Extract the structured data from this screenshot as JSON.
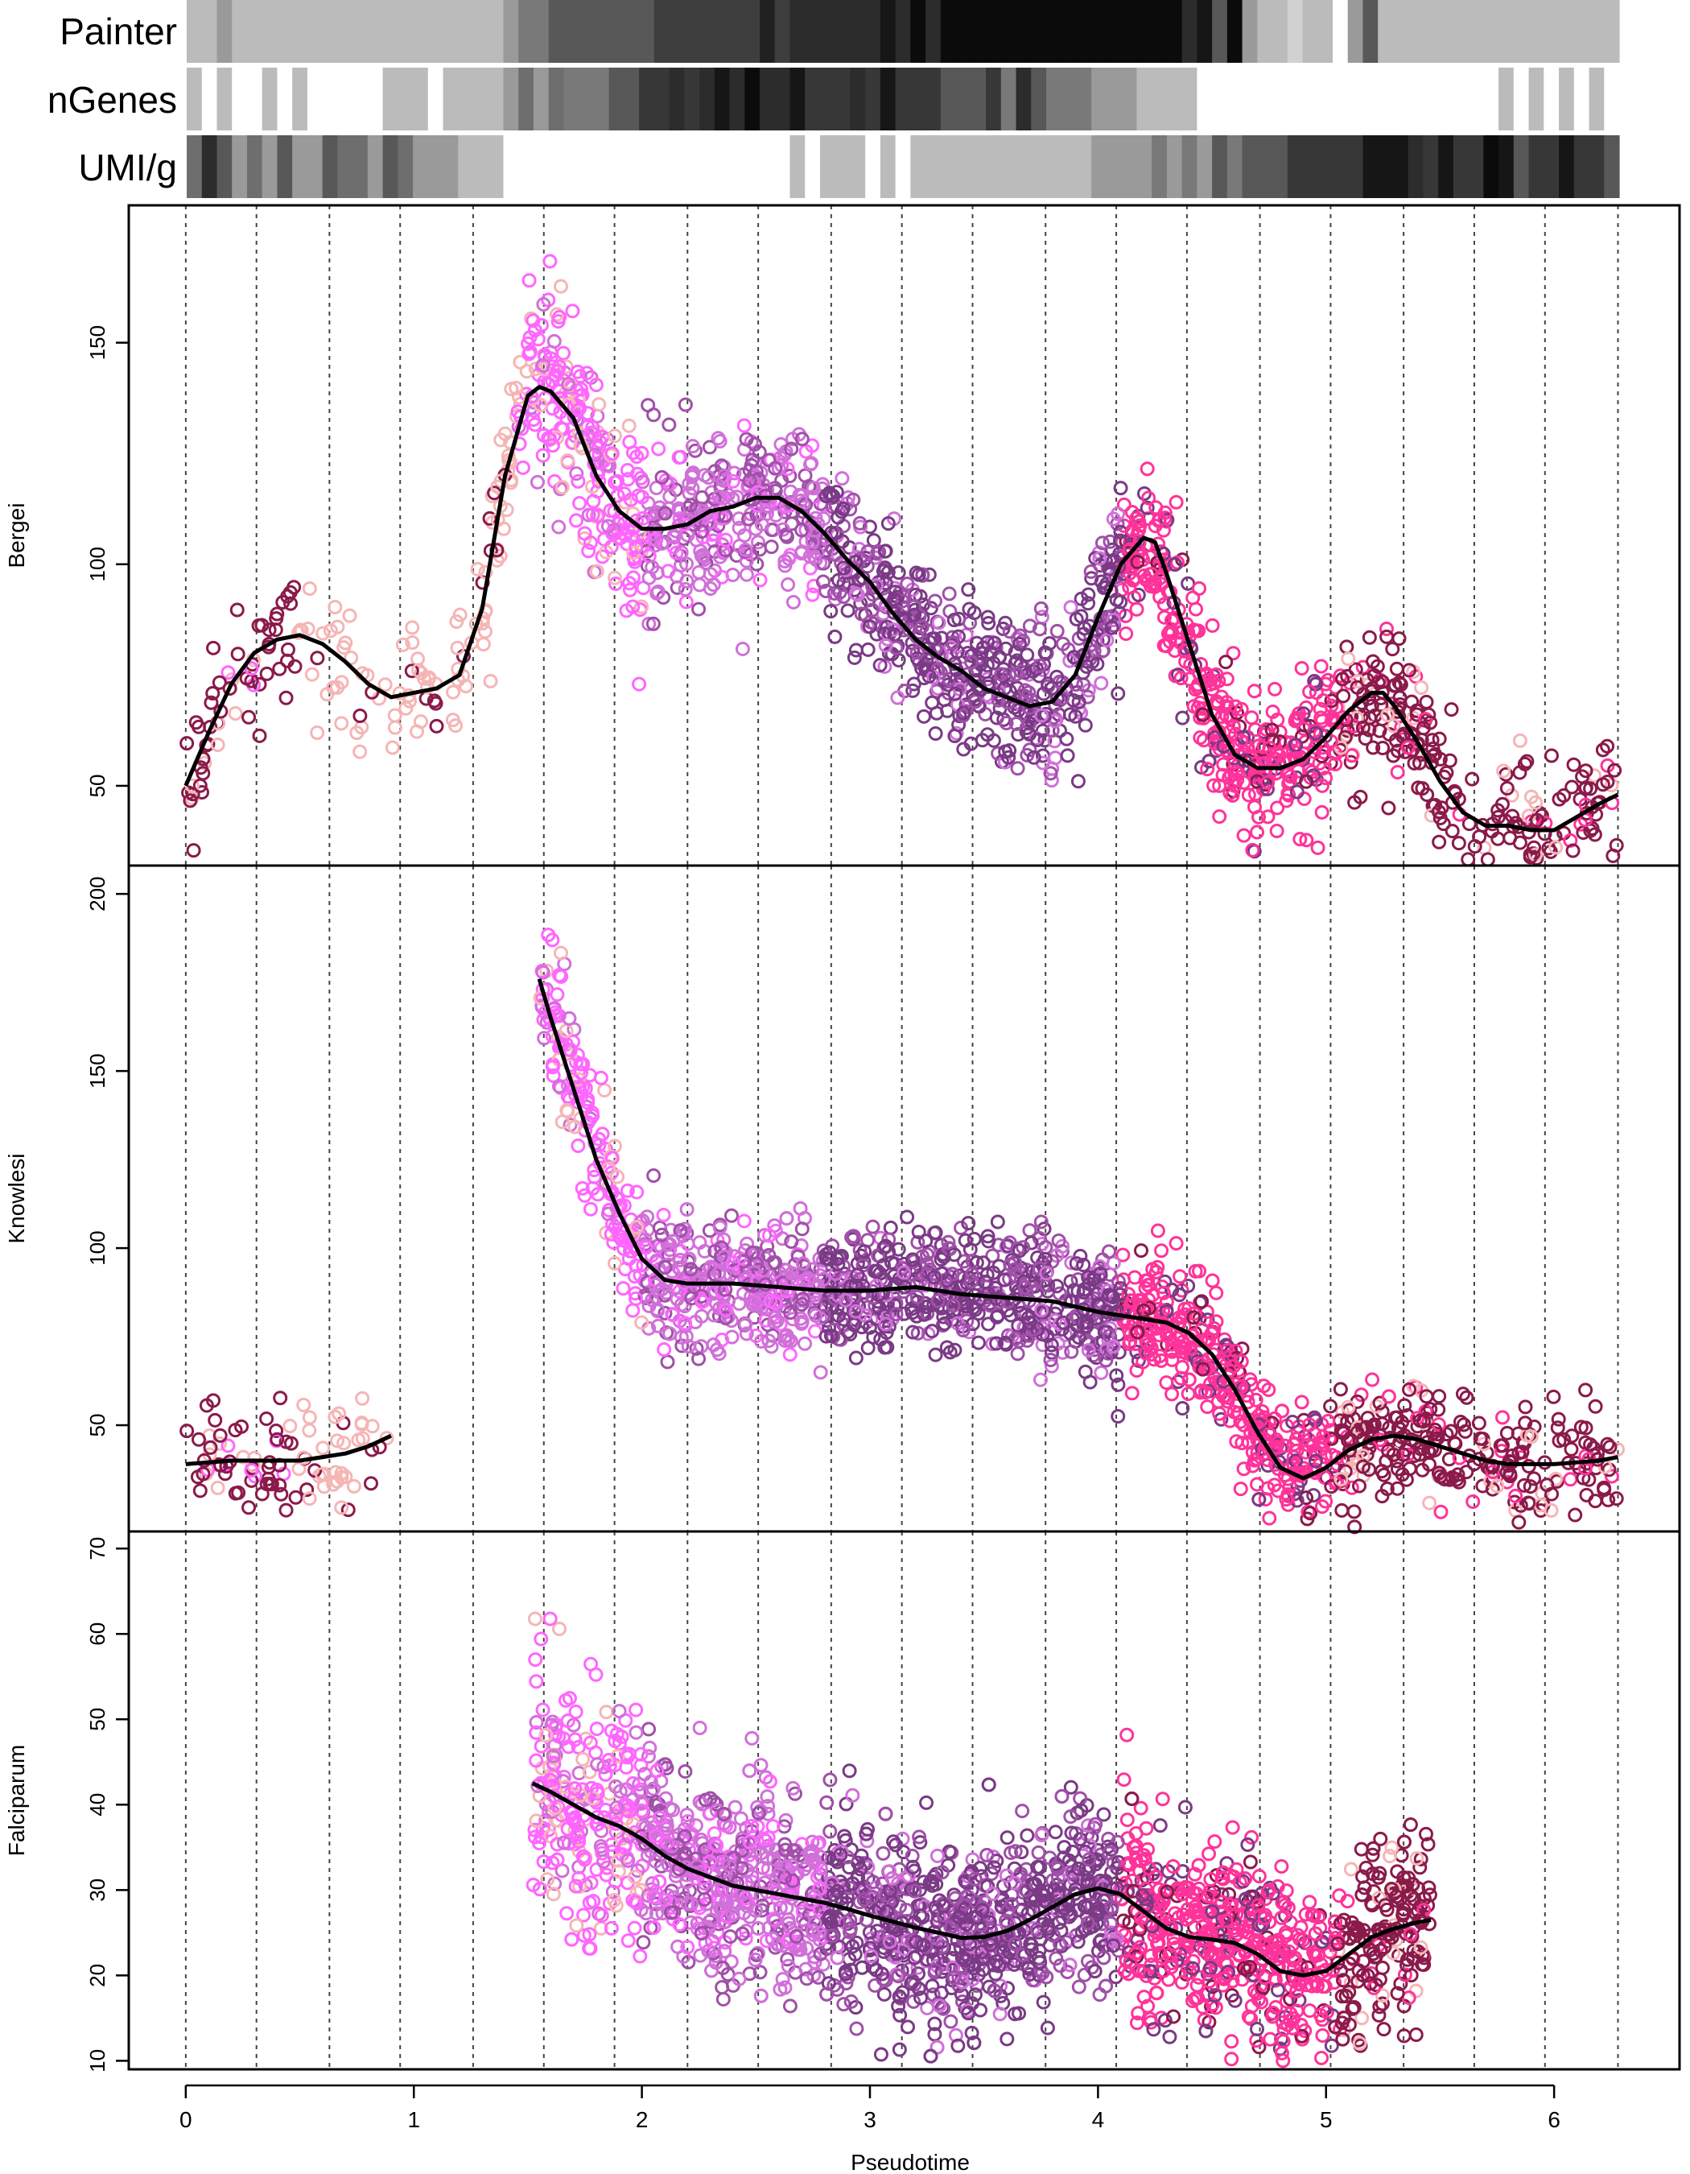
{
  "figure": {
    "xlabel": "Pseudotime",
    "x_ticks": [
      "0",
      "1",
      "2",
      "3",
      "4",
      "5",
      "6"
    ],
    "x_tick_values": [
      0,
      1,
      2,
      3,
      4,
      5,
      6
    ],
    "xlim": [
      -0.25,
      6.55
    ],
    "vertical_gridlines_at": [
      0,
      0.31,
      0.63,
      0.94,
      1.26,
      1.57,
      1.88,
      2.2,
      2.51,
      2.83,
      3.14,
      3.45,
      3.77,
      4.08,
      4.39,
      4.71,
      5.02,
      5.34,
      5.65,
      5.96,
      6.28
    ],
    "heatbar_labels": [
      "Painter",
      "nGenes",
      "UMI/g"
    ],
    "colors": {
      "light_pink": "#f5b5b5",
      "hot_pink_light": "#ff66ff",
      "orchid": "#d070d8",
      "mid_purple": "#a050a8",
      "dark_purple": "#7a3a85",
      "deep_pink": "#ff3399",
      "maroon": "#8a1a4a",
      "trend": "#000000"
    }
  },
  "heatbars": [
    {
      "label": "Painter",
      "cells": [
        0.15,
        0.15,
        0.3,
        0.15,
        0.15,
        0.15,
        0.15,
        0.15,
        0.15,
        0.15,
        0.15,
        0.15,
        0.15,
        0.15,
        0.15,
        0.15,
        0.15,
        0.15,
        0.15,
        0.15,
        0.15,
        0.3,
        0.45,
        0.45,
        0.6,
        0.6,
        0.6,
        0.6,
        0.6,
        0.6,
        0.6,
        0.72,
        0.72,
        0.72,
        0.72,
        0.72,
        0.72,
        0.72,
        0.85,
        0.72,
        0.8,
        0.8,
        0.8,
        0.8,
        0.8,
        0.8,
        0.9,
        0.8,
        0.95,
        0.8,
        0.95,
        0.95,
        0.95,
        0.95,
        0.95,
        0.95,
        0.95,
        0.95,
        0.95,
        0.95,
        0.95,
        0.95,
        0.95,
        0.95,
        0.95,
        0.95,
        0.8,
        0.9,
        0.6,
        0.95,
        0.3,
        0.15,
        0.15,
        0.05,
        0.15,
        0.15,
        0.0,
        0.3,
        0.6,
        0.15,
        0.15,
        0.15,
        0.15,
        0.15,
        0.15,
        0.15,
        0.15,
        0.15,
        0.15,
        0.15,
        0.15,
        0.15,
        0.15,
        0.15,
        0.15
      ]
    },
    {
      "label": "nGenes",
      "cells": [
        0.15,
        0.0,
        0.15,
        0.0,
        0.0,
        0.15,
        0.0,
        0.15,
        0.0,
        0.0,
        0.0,
        0.0,
        0.0,
        0.15,
        0.15,
        0.15,
        0.0,
        0.15,
        0.15,
        0.15,
        0.15,
        0.3,
        0.5,
        0.3,
        0.5,
        0.45,
        0.45,
        0.45,
        0.6,
        0.6,
        0.75,
        0.75,
        0.8,
        0.75,
        0.8,
        0.9,
        0.8,
        0.95,
        0.8,
        0.8,
        0.9,
        0.75,
        0.75,
        0.75,
        0.8,
        0.75,
        0.9,
        0.75,
        0.75,
        0.75,
        0.6,
        0.6,
        0.6,
        0.75,
        0.45,
        0.8,
        0.6,
        0.45,
        0.45,
        0.45,
        0.3,
        0.3,
        0.3,
        0.15,
        0.15,
        0.15,
        0.15,
        0.0,
        0.0,
        0.0,
        0.0,
        0.0,
        0.0,
        0.0,
        0.0,
        0.0,
        0.0,
        0.0,
        0.0,
        0.0,
        0.0,
        0.0,
        0.0,
        0.0,
        0.0,
        0.0,
        0.0,
        0.15,
        0.0,
        0.15,
        0.0,
        0.15,
        0.0,
        0.15,
        0.0
      ]
    },
    {
      "label": "UMI/g",
      "cells": [
        0.5,
        0.8,
        0.6,
        0.3,
        0.5,
        0.3,
        0.6,
        0.3,
        0.3,
        0.6,
        0.5,
        0.5,
        0.3,
        0.6,
        0.5,
        0.3,
        0.3,
        0.3,
        0.15,
        0.15,
        0.15,
        0.0,
        0.0,
        0.0,
        0.0,
        0.0,
        0.0,
        0.0,
        0.0,
        0.0,
        0.0,
        0.0,
        0.0,
        0.0,
        0.0,
        0.0,
        0.0,
        0.0,
        0.0,
        0.0,
        0.15,
        0.0,
        0.15,
        0.15,
        0.15,
        0.0,
        0.15,
        0.0,
        0.15,
        0.15,
        0.15,
        0.15,
        0.15,
        0.15,
        0.15,
        0.15,
        0.15,
        0.15,
        0.15,
        0.15,
        0.3,
        0.3,
        0.3,
        0.3,
        0.45,
        0.3,
        0.45,
        0.3,
        0.6,
        0.45,
        0.6,
        0.6,
        0.6,
        0.75,
        0.75,
        0.75,
        0.75,
        0.75,
        0.9,
        0.9,
        0.9,
        0.8,
        0.75,
        0.9,
        0.75,
        0.75,
        0.95,
        0.9,
        0.6,
        0.75,
        0.75,
        0.9,
        0.75,
        0.75,
        0.6
      ]
    }
  ],
  "chart_data": [
    {
      "type": "scatter",
      "title": "",
      "xlabel": "Pseudotime",
      "ylabel": "Bergei",
      "xlim": [
        -0.25,
        6.55
      ],
      "ylim": [
        32,
        181
      ],
      "y_ticks": [
        50,
        100,
        150
      ],
      "trend_x": [
        0.0,
        0.1,
        0.2,
        0.3,
        0.4,
        0.5,
        0.6,
        0.7,
        0.8,
        0.9,
        1.0,
        1.1,
        1.2,
        1.3,
        1.4,
        1.5,
        1.55,
        1.6,
        1.7,
        1.8,
        1.9,
        2.0,
        2.1,
        2.2,
        2.3,
        2.4,
        2.5,
        2.6,
        2.7,
        2.8,
        2.9,
        3.0,
        3.1,
        3.2,
        3.3,
        3.4,
        3.5,
        3.6,
        3.7,
        3.8,
        3.9,
        4.0,
        4.1,
        4.2,
        4.25,
        4.3,
        4.4,
        4.5,
        4.6,
        4.7,
        4.8,
        4.9,
        5.0,
        5.1,
        5.2,
        5.25,
        5.3,
        5.4,
        5.5,
        5.6,
        5.7,
        5.8,
        5.9,
        6.0,
        6.1,
        6.2,
        6.28
      ],
      "trend_y": [
        50,
        62,
        73,
        80,
        83,
        84,
        82,
        78,
        73,
        70,
        71,
        72,
        75,
        90,
        120,
        138,
        140,
        139,
        133,
        120,
        112,
        108,
        108,
        109,
        112,
        113,
        115,
        115,
        112,
        107,
        101,
        96,
        89,
        83,
        79,
        76,
        72,
        70,
        68,
        69,
        75,
        88,
        100,
        106,
        105,
        98,
        82,
        66,
        57,
        54,
        54,
        56,
        61,
        67,
        71,
        71,
        68,
        60,
        51,
        44,
        41,
        41,
        40,
        40,
        43,
        46,
        48
      ],
      "points_note": "clusters of open circles around the trend, coloured by cell cluster"
    },
    {
      "type": "scatter",
      "title": "",
      "xlabel": "Pseudotime",
      "ylabel": "Knowlesi",
      "xlim": [
        -0.25,
        6.55
      ],
      "ylim": [
        20,
        208
      ],
      "y_ticks": [
        50,
        100,
        150,
        200
      ],
      "trend_segments": [
        {
          "x": [
            0.0,
            0.1,
            0.2,
            0.3,
            0.4,
            0.5,
            0.6,
            0.7,
            0.8,
            0.9
          ],
          "y": [
            39,
            39.5,
            40,
            40,
            40,
            40,
            41,
            42,
            44,
            47
          ]
        },
        {
          "x": [
            1.55,
            1.6,
            1.7,
            1.8,
            1.9,
            2.0,
            2.1,
            2.2,
            2.4,
            2.6,
            2.8,
            3.0,
            3.2,
            3.4,
            3.6,
            3.8,
            4.0,
            4.2,
            4.3,
            4.4,
            4.5,
            4.6,
            4.7,
            4.8,
            4.9,
            5.0,
            5.1,
            5.2,
            5.3,
            5.4,
            5.5,
            5.6,
            5.7,
            5.8,
            6.0,
            6.2,
            6.28
          ],
          "y": [
            176,
            165,
            145,
            125,
            110,
            97,
            91,
            90,
            90,
            89,
            88,
            88,
            89,
            87,
            86,
            85,
            82,
            80,
            79,
            76,
            70,
            60,
            48,
            38,
            35,
            38,
            43,
            46,
            47,
            46,
            44,
            42,
            40,
            39,
            39,
            40,
            41
          ]
        }
      ],
      "points_note": "open circles; early maroon cluster near 40 at x 0–0.9, dense band from x 1.5 to 6.3"
    },
    {
      "type": "scatter",
      "title": "",
      "xlabel": "Pseudotime",
      "ylabel": "Falciparum",
      "xlim": [
        -0.25,
        6.55
      ],
      "ylim": [
        9,
        72
      ],
      "y_ticks": [
        10,
        20,
        30,
        40,
        50,
        60,
        70
      ],
      "trend_x": [
        1.52,
        1.6,
        1.7,
        1.8,
        1.9,
        2.0,
        2.1,
        2.2,
        2.3,
        2.4,
        2.5,
        2.6,
        2.7,
        2.8,
        2.9,
        3.0,
        3.1,
        3.2,
        3.3,
        3.4,
        3.5,
        3.6,
        3.7,
        3.8,
        3.9,
        4.0,
        4.1,
        4.2,
        4.3,
        4.4,
        4.5,
        4.6,
        4.7,
        4.8,
        4.9,
        5.0,
        5.1,
        5.2,
        5.3,
        5.4,
        5.46
      ],
      "trend_y": [
        42.5,
        41.5,
        40,
        38.5,
        37.5,
        36,
        34,
        32.5,
        31.5,
        30.5,
        30,
        29.5,
        29,
        28.5,
        27.8,
        27,
        26.3,
        25.6,
        25,
        24.4,
        24.5,
        25.2,
        26.5,
        28,
        29.5,
        30.2,
        29.5,
        27.5,
        25.5,
        24.5,
        24.2,
        23.8,
        22.5,
        20.5,
        20,
        20.5,
        22.5,
        24.5,
        25.5,
        26.2,
        26.5
      ],
      "points_note": "open circles coloured by cluster, wide spread from x 1.5 to 5.5"
    }
  ]
}
